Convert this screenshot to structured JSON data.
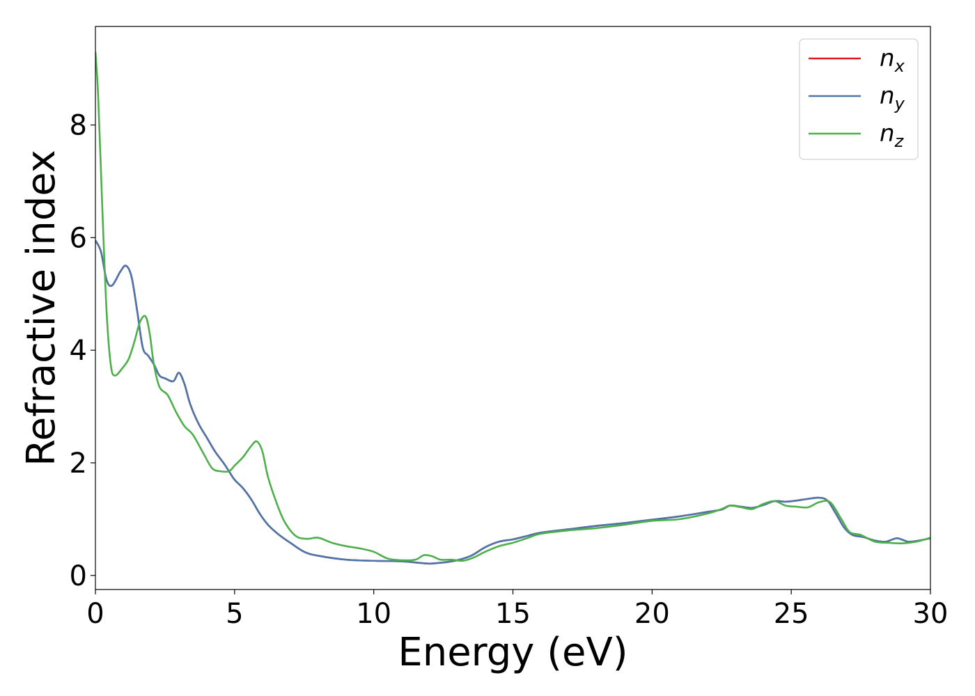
{
  "chart_data": {
    "type": "line",
    "title": "",
    "xlabel": "Energy (eV)",
    "ylabel": "Refractive index",
    "xlim": [
      0,
      30
    ],
    "ylim": [
      -0.25,
      9.75
    ],
    "xticks": [
      0,
      5,
      10,
      15,
      20,
      25,
      30
    ],
    "yticks": [
      0,
      2,
      4,
      6,
      8
    ],
    "xtick_labels": [
      "0",
      "5",
      "10",
      "15",
      "20",
      "25",
      "30"
    ],
    "ytick_labels": [
      "0",
      "2",
      "4",
      "6",
      "8"
    ],
    "grid": false,
    "legend_position": "top-right",
    "series": [
      {
        "name": "n_x",
        "legend_main": "n",
        "legend_sub": "x",
        "color": "#e41a1c",
        "x": [
          0,
          0.2,
          0.4,
          0.6,
          0.9,
          1.1,
          1.3,
          1.5,
          1.7,
          1.9,
          2.1,
          2.3,
          2.5,
          2.8,
          3.0,
          3.2,
          3.4,
          3.7,
          4.0,
          4.3,
          4.6,
          4.8,
          5.0,
          5.3,
          5.6,
          5.9,
          6.2,
          6.6,
          7.0,
          7.5,
          8.0,
          9.0,
          10.0,
          11.0,
          11.5,
          12.0,
          12.5,
          13.0,
          13.5,
          14.0,
          14.5,
          15.0,
          15.5,
          16.0,
          17.0,
          18.0,
          19.0,
          20.0,
          21.0,
          22.0,
          22.5,
          22.8,
          23.2,
          23.6,
          24.0,
          24.4,
          24.8,
          25.2,
          25.6,
          26.0,
          26.3,
          26.6,
          26.9,
          27.2,
          27.6,
          28.0,
          28.4,
          28.8,
          29.2,
          29.6,
          30.0
        ],
        "y": [
          5.95,
          5.75,
          5.25,
          5.15,
          5.4,
          5.5,
          5.3,
          4.7,
          4.05,
          3.9,
          3.75,
          3.55,
          3.5,
          3.45,
          3.6,
          3.4,
          3.05,
          2.7,
          2.45,
          2.2,
          2.0,
          1.85,
          1.7,
          1.55,
          1.35,
          1.1,
          0.9,
          0.72,
          0.58,
          0.42,
          0.35,
          0.28,
          0.26,
          0.25,
          0.23,
          0.21,
          0.23,
          0.27,
          0.35,
          0.5,
          0.6,
          0.64,
          0.7,
          0.76,
          0.82,
          0.88,
          0.93,
          0.99,
          1.05,
          1.13,
          1.17,
          1.24,
          1.22,
          1.2,
          1.25,
          1.32,
          1.31,
          1.33,
          1.36,
          1.38,
          1.33,
          1.1,
          0.85,
          0.72,
          0.68,
          0.62,
          0.6,
          0.66,
          0.6,
          0.62,
          0.66
        ]
      },
      {
        "name": "n_y",
        "legend_main": "n",
        "legend_sub": "y",
        "color": "#4a76ab",
        "x": [
          0,
          0.2,
          0.4,
          0.6,
          0.9,
          1.1,
          1.3,
          1.5,
          1.7,
          1.9,
          2.1,
          2.3,
          2.5,
          2.8,
          3.0,
          3.2,
          3.4,
          3.7,
          4.0,
          4.3,
          4.6,
          4.8,
          5.0,
          5.3,
          5.6,
          5.9,
          6.2,
          6.6,
          7.0,
          7.5,
          8.0,
          9.0,
          10.0,
          11.0,
          11.5,
          12.0,
          12.5,
          13.0,
          13.5,
          14.0,
          14.5,
          15.0,
          15.5,
          16.0,
          17.0,
          18.0,
          19.0,
          20.0,
          21.0,
          22.0,
          22.5,
          22.8,
          23.2,
          23.6,
          24.0,
          24.4,
          24.8,
          25.2,
          25.6,
          26.0,
          26.3,
          26.6,
          26.9,
          27.2,
          27.6,
          28.0,
          28.4,
          28.8,
          29.2,
          29.6,
          30.0
        ],
        "y": [
          5.95,
          5.75,
          5.25,
          5.15,
          5.4,
          5.5,
          5.3,
          4.7,
          4.05,
          3.9,
          3.75,
          3.55,
          3.5,
          3.45,
          3.6,
          3.4,
          3.05,
          2.7,
          2.45,
          2.2,
          2.0,
          1.85,
          1.7,
          1.55,
          1.35,
          1.1,
          0.9,
          0.72,
          0.58,
          0.42,
          0.35,
          0.28,
          0.26,
          0.25,
          0.23,
          0.21,
          0.23,
          0.27,
          0.35,
          0.5,
          0.6,
          0.64,
          0.7,
          0.76,
          0.82,
          0.88,
          0.93,
          0.99,
          1.05,
          1.13,
          1.17,
          1.24,
          1.22,
          1.2,
          1.25,
          1.32,
          1.31,
          1.33,
          1.36,
          1.38,
          1.33,
          1.1,
          0.85,
          0.72,
          0.68,
          0.62,
          0.6,
          0.66,
          0.6,
          0.62,
          0.66
        ]
      },
      {
        "name": "n_z",
        "legend_main": "n",
        "legend_sub": "z",
        "color": "#4daf4a",
        "x": [
          0,
          0.1,
          0.25,
          0.4,
          0.55,
          0.7,
          1.0,
          1.2,
          1.4,
          1.6,
          1.8,
          1.95,
          2.1,
          2.3,
          2.6,
          2.9,
          3.2,
          3.5,
          3.9,
          4.2,
          4.5,
          4.8,
          5.0,
          5.3,
          5.6,
          5.8,
          6.0,
          6.2,
          6.5,
          6.8,
          7.2,
          7.6,
          8.0,
          8.5,
          9.0,
          9.5,
          10.0,
          10.5,
          11.0,
          11.5,
          11.8,
          12.1,
          12.4,
          12.8,
          13.2,
          13.6,
          14.0,
          14.5,
          15.0,
          15.5,
          16.0,
          17.0,
          18.0,
          19.0,
          20.0,
          21.0,
          22.0,
          22.5,
          22.8,
          23.2,
          23.6,
          24.0,
          24.4,
          24.8,
          25.2,
          25.6,
          26.0,
          26.4,
          26.8,
          27.1,
          27.5,
          28.0,
          28.5,
          29.0,
          29.5,
          30.0
        ],
        "y": [
          9.3,
          8.5,
          6.5,
          4.7,
          3.75,
          3.55,
          3.7,
          3.85,
          4.15,
          4.5,
          4.6,
          4.3,
          3.75,
          3.35,
          3.2,
          2.9,
          2.65,
          2.5,
          2.15,
          1.9,
          1.85,
          1.85,
          1.95,
          2.1,
          2.3,
          2.38,
          2.2,
          1.75,
          1.3,
          0.95,
          0.7,
          0.65,
          0.67,
          0.58,
          0.52,
          0.48,
          0.42,
          0.3,
          0.27,
          0.28,
          0.36,
          0.34,
          0.28,
          0.28,
          0.26,
          0.32,
          0.42,
          0.52,
          0.58,
          0.66,
          0.74,
          0.8,
          0.84,
          0.9,
          0.97,
          1.0,
          1.1,
          1.18,
          1.24,
          1.21,
          1.18,
          1.27,
          1.32,
          1.24,
          1.22,
          1.21,
          1.3,
          1.3,
          1.0,
          0.77,
          0.72,
          0.6,
          0.58,
          0.57,
          0.6,
          0.67
        ]
      }
    ]
  }
}
